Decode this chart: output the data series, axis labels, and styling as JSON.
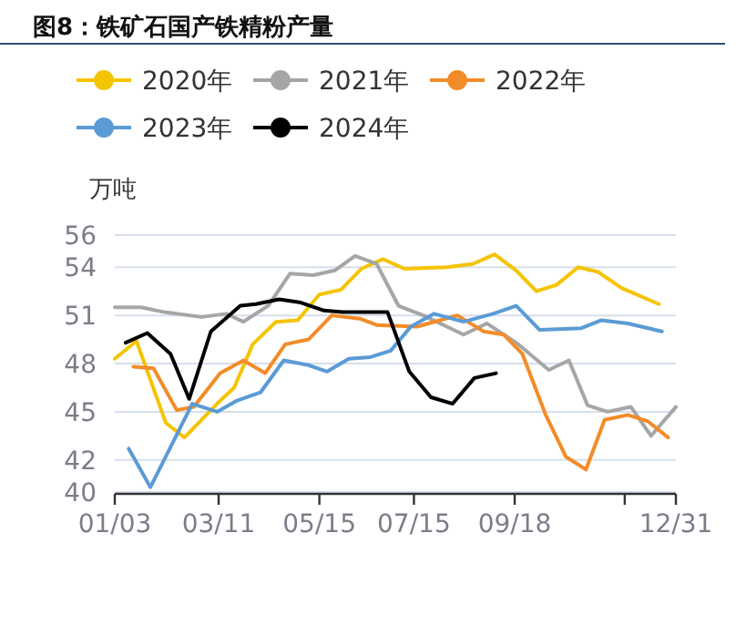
{
  "chart_data": {
    "type": "line",
    "title": "图8：铁矿石国产铁精粉产量",
    "ylabel": "万吨",
    "xlim": [
      "--01-03",
      "--12-31"
    ],
    "xticks": [
      {
        "value": "--01-03",
        "label": "01/03"
      },
      {
        "value": "--03-11",
        "label": "03/11"
      },
      {
        "value": "--05-15",
        "label": "05/15"
      },
      {
        "value": "--07-15",
        "label": "07/15"
      },
      {
        "value": "--09-18",
        "label": "09/18"
      },
      {
        "value": "--11-28",
        "label": null
      },
      {
        "value": "--12-31",
        "label": "12/31"
      }
    ],
    "ylim": [
      40,
      56
    ],
    "yticks": [
      40,
      42,
      45,
      48,
      51,
      54,
      56
    ],
    "grid": "y",
    "legend": "top",
    "line_style": "solid",
    "series": [
      {
        "name": "2020年",
        "color": "#f5c400",
        "x": [
          "--01-03",
          "--01-17",
          "--02-05",
          "--02-17",
          "--03-10",
          "--03-21",
          "--04-02",
          "--04-17",
          "--05-01",
          "--05-15",
          "--05-29",
          "--06-11",
          "--06-25",
          "--07-09",
          "--08-05",
          "--08-22",
          "--09-05",
          "--09-19",
          "--10-02",
          "--10-15",
          "--10-29",
          "--11-11",
          "--11-26",
          "--12-20"
        ],
        "values": [
          48.3,
          49.4,
          44.3,
          43.4,
          45.5,
          46.5,
          49.2,
          50.6,
          50.7,
          52.3,
          52.6,
          53.9,
          54.5,
          53.9,
          54.0,
          54.2,
          54.8,
          53.8,
          52.5,
          52.9,
          54.0,
          53.7,
          52.7,
          51.7
        ]
      },
      {
        "name": "2021年",
        "color": "#a6a6a6",
        "x": [
          "--01-03",
          "--01-20",
          "--02-04",
          "--02-28",
          "--03-16",
          "--03-27",
          "--04-12",
          "--04-26",
          "--05-11",
          "--05-25",
          "--06-07",
          "--06-21",
          "--07-05",
          "--07-21",
          "--08-16",
          "--08-31",
          "--09-19",
          "--10-10",
          "--10-23",
          "--11-04",
          "--11-17",
          "--12-02",
          "--12-15",
          "--12-31"
        ],
        "values": [
          51.5,
          51.5,
          51.2,
          50.9,
          51.1,
          50.6,
          51.6,
          53.6,
          53.5,
          53.8,
          54.7,
          54.2,
          51.6,
          51.0,
          49.8,
          50.5,
          49.3,
          47.6,
          48.2,
          45.4,
          45.0,
          45.3,
          43.5,
          45.3
        ]
      },
      {
        "name": "2022年",
        "color": "#f28c28",
        "x": [
          "--01-15",
          "--01-28",
          "--02-12",
          "--02-23",
          "--03-12",
          "--03-27",
          "--04-10",
          "--04-23",
          "--05-08",
          "--05-23",
          "--06-10",
          "--06-21",
          "--07-17",
          "--08-12",
          "--08-29",
          "--09-11",
          "--09-23",
          "--10-08",
          "--10-21",
          "--11-03",
          "--11-15",
          "--11-30",
          "--12-13",
          "--12-26"
        ],
        "values": [
          47.8,
          47.7,
          45.1,
          45.3,
          47.4,
          48.2,
          47.4,
          49.2,
          49.5,
          51.0,
          50.8,
          50.4,
          50.3,
          51.0,
          50.0,
          49.8,
          48.6,
          44.8,
          42.2,
          41.4,
          44.5,
          44.8,
          44.4,
          43.4
        ]
      },
      {
        "name": "2023年",
        "color": "#5b9bd5",
        "x": [
          "--01-12",
          "--01-26",
          "--02-22",
          "--03-10",
          "--03-23",
          "--04-07",
          "--04-22",
          "--05-08",
          "--05-20",
          "--06-03",
          "--06-17",
          "--06-30",
          "--07-13",
          "--07-28",
          "--08-16",
          "--09-04",
          "--09-19",
          "--10-04",
          "--10-31",
          "--11-13",
          "--11-30",
          "--12-22"
        ],
        "values": [
          42.7,
          40.3,
          45.5,
          45.0,
          45.7,
          46.2,
          48.2,
          47.9,
          47.5,
          48.3,
          48.4,
          48.8,
          50.3,
          51.1,
          50.6,
          51.1,
          51.6,
          50.1,
          50.2,
          50.7,
          50.5,
          50.0
        ]
      },
      {
        "name": "2024年",
        "color": "#000000",
        "x": [
          "--01-10",
          "--01-24",
          "--02-08",
          "--02-20",
          "--03-06",
          "--03-25",
          "--04-04",
          "--04-19",
          "--05-03",
          "--05-18",
          "--05-30",
          "--06-13",
          "--06-28",
          "--07-12",
          "--07-26",
          "--08-09",
          "--08-23",
          "--09-06"
        ],
        "values": [
          49.3,
          49.9,
          48.6,
          45.8,
          50.0,
          51.6,
          51.7,
          52.0,
          51.8,
          51.3,
          51.2,
          51.2,
          51.2,
          47.5,
          45.9,
          45.5,
          47.1,
          47.4
        ]
      }
    ]
  }
}
